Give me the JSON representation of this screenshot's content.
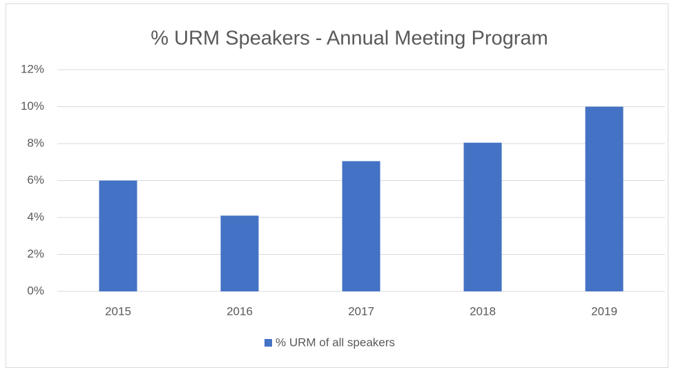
{
  "chart_data": {
    "type": "bar",
    "title": "% URM Speakers - Annual Meeting Program",
    "categories": [
      "2015",
      "2016",
      "2017",
      "2018",
      "2019"
    ],
    "series": [
      {
        "name": "% URM of all speakers",
        "color": "#4472c4",
        "values": [
          6,
          4.1,
          7.05,
          8.05,
          10
        ]
      }
    ],
    "ylim": [
      0,
      12
    ],
    "yticks": [
      {
        "value": 0,
        "label": "0%"
      },
      {
        "value": 2,
        "label": "2%"
      },
      {
        "value": 4,
        "label": "4%"
      },
      {
        "value": 6,
        "label": "6%"
      },
      {
        "value": 8,
        "label": "8%"
      },
      {
        "value": 10,
        "label": "10%"
      },
      {
        "value": 12,
        "label": "12%"
      }
    ],
    "grid": true,
    "legend": "bottom"
  }
}
